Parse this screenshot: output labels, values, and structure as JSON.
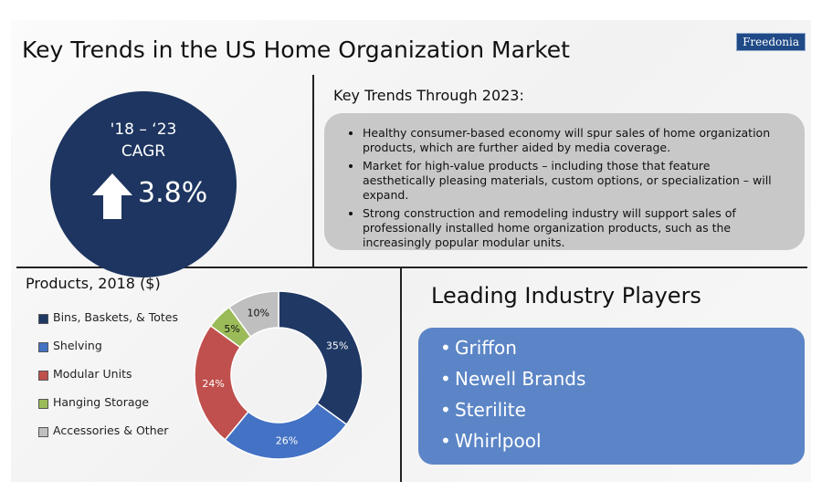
{
  "title": "Key Trends in the US Home Organization Market",
  "logo": "Freedonia",
  "cagr": {
    "period": "'18 – ‘23",
    "label": "CAGR",
    "value": "3.8%",
    "arrow_icon": "up-arrow-icon"
  },
  "trends": {
    "heading": "Key Trends Through 2023:",
    "items": [
      "Healthy consumer-based economy will spur sales of home organization products, which are further aided by media coverage.",
      "Market for high-value products – including those that feature aesthetically pleasing materials, custom options, or specialization – will expand.",
      "Strong construction and remodeling industry will support sales of professionally installed home organization products, such as the increasingly popular modular units."
    ]
  },
  "chart_data": {
    "type": "pie",
    "title": "Products, 2018 ($)",
    "donut": true,
    "legend_position": "left",
    "categories": [
      "Bins, Baskets, & Totes",
      "Shelving",
      "Modular Units",
      "Hanging Storage",
      "Accessories & Other"
    ],
    "values": [
      35,
      26,
      24,
      5,
      10
    ],
    "labels": [
      "35%",
      "26%",
      "24%",
      "5%",
      "10%"
    ],
    "colors": [
      "#1f3864",
      "#4472c4",
      "#c0504d",
      "#9bbb59",
      "#bfbfbf"
    ]
  },
  "players": {
    "heading": "Leading Industry Players",
    "bullet": "•",
    "items": [
      "Griffon",
      "Newell Brands",
      "Sterilite",
      "Whirlpool"
    ]
  },
  "colors": {
    "circle": "#1d3560",
    "trends_box": "#c8c8c8",
    "players_box": "#5b85c6"
  }
}
